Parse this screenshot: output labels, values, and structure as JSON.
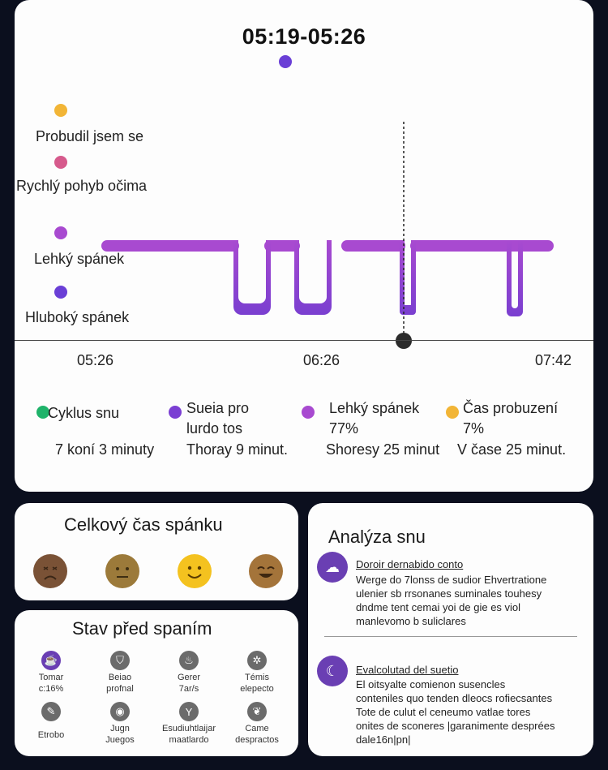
{
  "sleep_chart": {
    "time_range": "05:19-05:26",
    "stages": [
      {
        "label": "Probudil jsem se",
        "color": "#f2b536"
      },
      {
        "label": "Rychlý pohyb očima",
        "color": "#d65a8c"
      },
      {
        "label": "Lehký spánek",
        "color": "#a84ad0"
      },
      {
        "label": "Hluboký spánek",
        "color": "#6a3fd6"
      }
    ],
    "time_axis": [
      "05:26",
      "06:26",
      "07:42"
    ],
    "accent_color": "#7b3fd3"
  },
  "legend": [
    {
      "color": "#1fb36a",
      "lines": [
        "Cyklus snu",
        ""
      ],
      "value": "7 koní 3 minuty"
    },
    {
      "color": "#7b3fd3",
      "lines": [
        "Sueia pro",
        "lurdo  tos"
      ],
      "value": "Thoray 9 minut."
    },
    {
      "color": "#a84ad0",
      "lines": [
        "Lehký spánek",
        "77%"
      ],
      "value": "Shoresy 25 minut"
    },
    {
      "color": "#f2b536",
      "lines": [
        "Čas probuzení",
        "7%"
      ],
      "value": "V čase 25 minut."
    }
  ],
  "total_sleep": {
    "title": "Celkový čas spánku",
    "faces": [
      "sad-face",
      "neutral-face",
      "smile-face",
      "happy-face"
    ]
  },
  "pre_sleep": {
    "title": "Stav před spaním",
    "items": [
      {
        "icon": "cup-icon",
        "lines": [
          "Tomar",
          "c:16%"
        ]
      },
      {
        "icon": "shield-icon",
        "lines": [
          "Beiao",
          "profnal"
        ]
      },
      {
        "icon": "drink-icon",
        "lines": [
          "Gerer",
          "7ar/s"
        ]
      },
      {
        "icon": "sun-icon",
        "lines": [
          "Témis",
          "elepecto"
        ]
      },
      {
        "icon": "pen-icon",
        "lines": [
          "Etrobo",
          ""
        ]
      },
      {
        "icon": "game-icon",
        "lines": [
          "Jugn",
          "Juegos"
        ]
      },
      {
        "icon": "glass-icon",
        "lines": [
          "Esudiuhtlaijar",
          "maatlardo"
        ]
      },
      {
        "icon": "leaf-icon",
        "lines": [
          "Came",
          "despractos"
        ]
      }
    ]
  },
  "analysis": {
    "title": "Analýza snu",
    "entries": [
      {
        "icon": "dream-icon",
        "heading": "Doroir dernabido conto",
        "body": [
          "Werge do 7lonss de sudior Ehvertratione",
          "ulenier sb rrsonanes suminales touhesy",
          "dndme tent cemai yoi de gie es viol",
          "manlevomo b suliclares"
        ]
      },
      {
        "icon": "moon-icon",
        "heading": "Evalcolutad del suetio",
        "body": [
          "El oitsyalte comienon susencles",
          "conteniles quo tenden dleocs rofiecsantes",
          "Tote de culut el ceneumo vatlae tores",
          "onites de sconeres |garanimente desprées",
          "dale16n|pn|"
        ]
      }
    ]
  }
}
